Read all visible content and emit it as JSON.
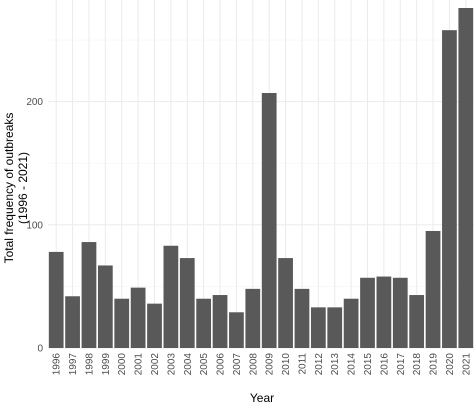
{
  "chart_data": {
    "type": "bar",
    "title": "",
    "xlabel": "Year",
    "ylabel": "Total frequency of outbreaks\n(1996 - 2021)",
    "categories": [
      "1996",
      "1997",
      "1998",
      "1999",
      "2000",
      "2001",
      "2002",
      "2003",
      "2004",
      "2005",
      "2006",
      "2007",
      "2008",
      "2009",
      "2010",
      "2011",
      "2012",
      "2013",
      "2014",
      "2015",
      "2016",
      "2017",
      "2018",
      "2019",
      "2020",
      "2021"
    ],
    "values": [
      78,
      42,
      86,
      67,
      40,
      49,
      36,
      83,
      73,
      40,
      43,
      29,
      48,
      207,
      73,
      48,
      33,
      33,
      40,
      57,
      58,
      57,
      43,
      95,
      258,
      276
    ],
    "yticks": [
      0,
      100,
      200
    ],
    "ylim": [
      0,
      276
    ],
    "grid": true,
    "bar_color": "#595959"
  }
}
